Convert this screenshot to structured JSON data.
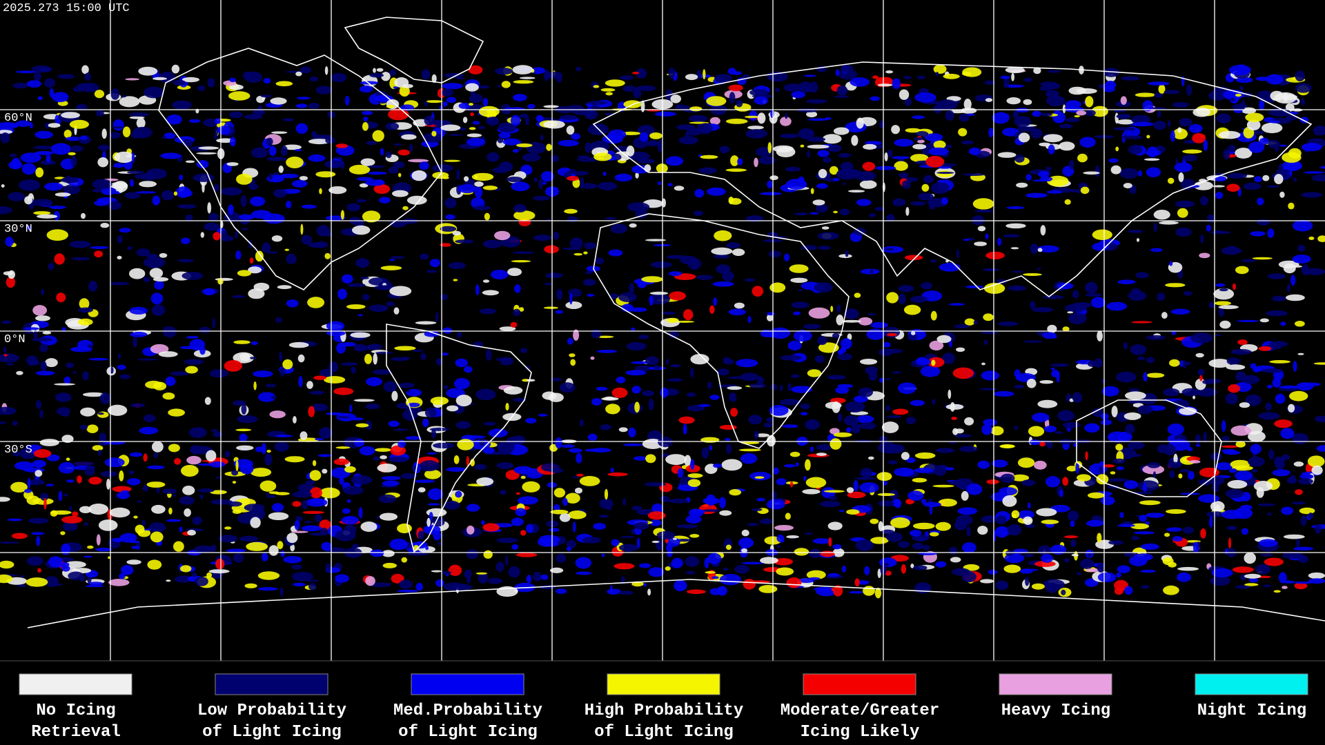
{
  "header": {
    "timestamp": "2025.273 15:00 UTC"
  },
  "map": {
    "latitude_labels": [
      "60°N",
      "30°N",
      "0°N",
      "30°S"
    ]
  },
  "legend": {
    "items": [
      {
        "label": [
          "No Icing",
          "Retrieval"
        ],
        "color": "#f0f0f0"
      },
      {
        "label": [
          "Low Probability",
          "of Light Icing"
        ],
        "color": "#00006e"
      },
      {
        "label": [
          "Med.Probability",
          "of Light Icing"
        ],
        "color": "#0000f0"
      },
      {
        "label": [
          "High Probability",
          "of Light Icing"
        ],
        "color": "#f5f500"
      },
      {
        "label": [
          "Moderate/Greater",
          "Icing Likely"
        ],
        "color": "#f50000"
      },
      {
        "label": [
          "Heavy Icing"
        ],
        "color": "#e8a0e0"
      },
      {
        "label": [
          "Night Icing"
        ],
        "color": "#00f0f0"
      }
    ]
  }
}
